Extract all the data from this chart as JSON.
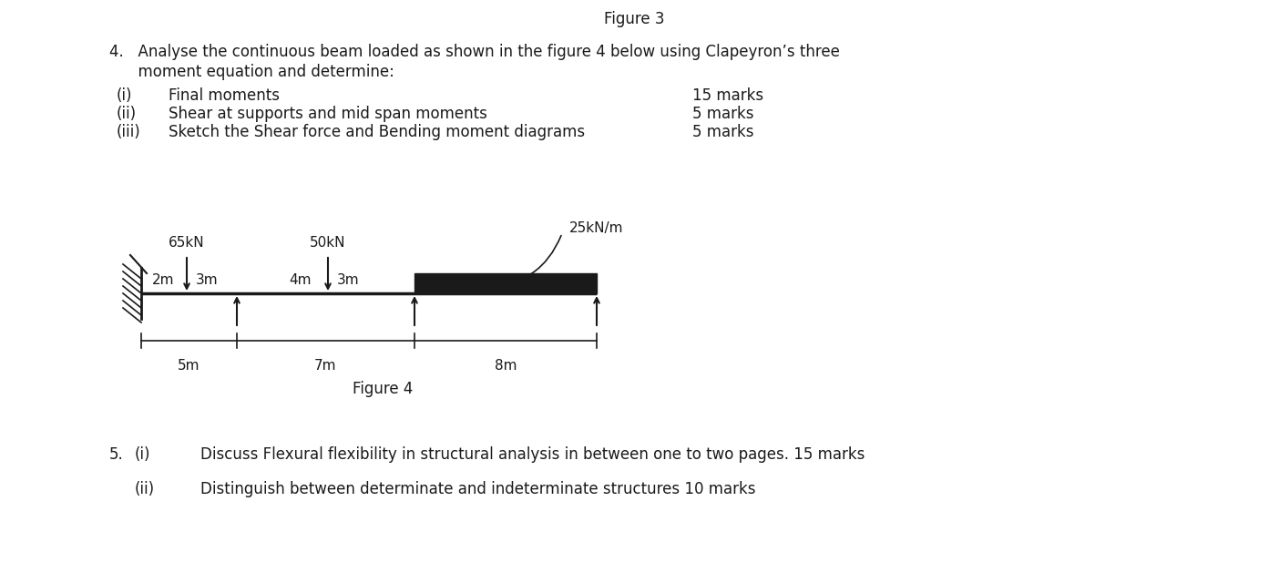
{
  "bg_color": "#ffffff",
  "text_color": "#1a1a1a",
  "fig_title": "Figure 3",
  "question4_line1": "4.   Analyse the continuous beam loaded as shown in the figure 4 below using Clapeyron’s three",
  "question4_line2": "      moment equation and determine:",
  "sub_items": [
    {
      "label": "(i)",
      "text": "Final moments",
      "marks": "15 marks"
    },
    {
      "label": "(ii)",
      "text": "Shear at supports and mid span moments",
      "marks": "5 marks"
    },
    {
      "label": "(iii)",
      "text": "Sketch the Shear force and Bending moment diagrams",
      "marks": "5 marks"
    }
  ],
  "figure4_label": "Figure 4",
  "q5_i_label": "5.",
  "q5_i_sub": "(i)",
  "q5_i_text": "Discuss Flexural flexibility in structural analysis in between one to two pages. 15 marks",
  "q5_ii_sub": "(ii)",
  "q5_ii_text": "Distinguish between determinate and indeterminate structures 10 marks",
  "beam_color": "#1a1a1a",
  "udl_color": "#1a1a1a",
  "font_size_body": 12,
  "font_size_small": 11,
  "font_size_title": 12
}
